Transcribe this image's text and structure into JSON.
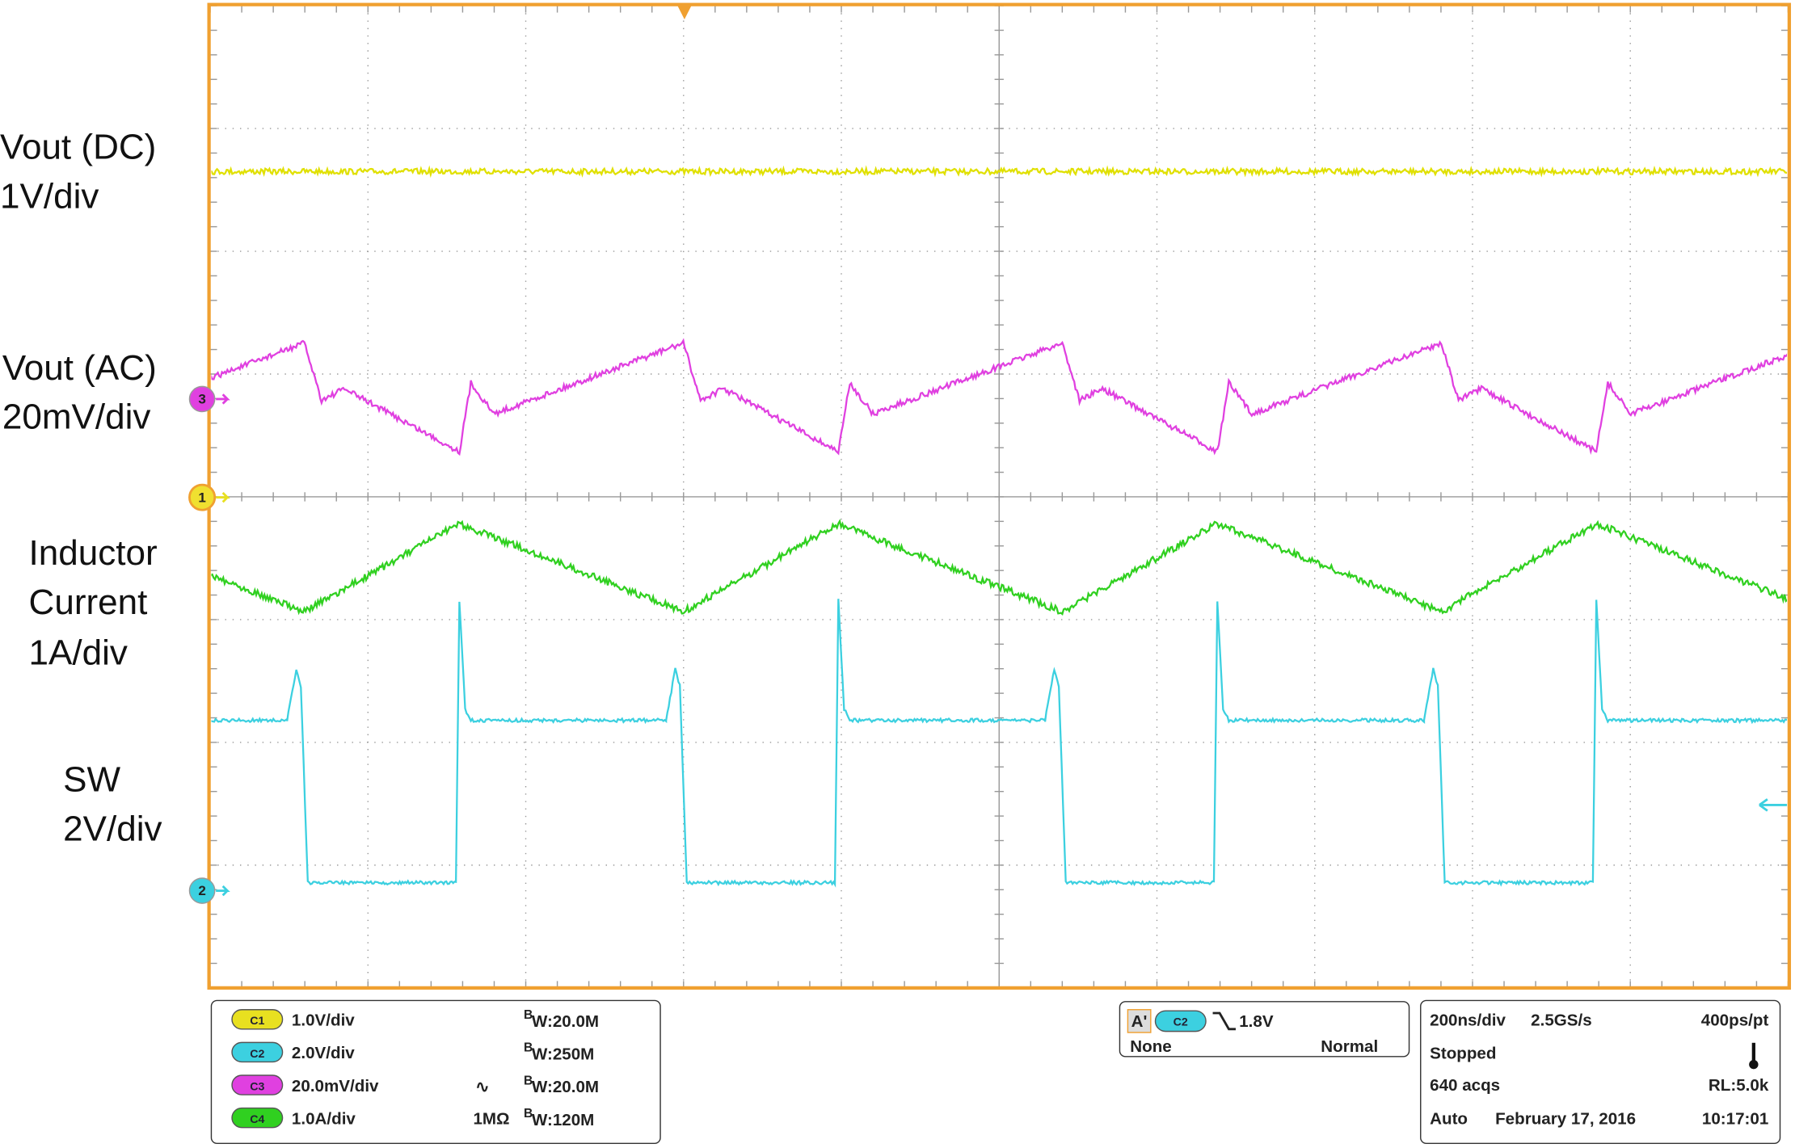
{
  "trace_labels": [
    {
      "name": "Vout (DC)",
      "scale": "1V/div"
    },
    {
      "name": "Vout (AC)",
      "scale": "20mV/div"
    },
    {
      "name": "Inductor",
      "name2": "Current",
      "scale": "1A/div"
    },
    {
      "name": "SW",
      "scale": "2V/div"
    }
  ],
  "markers": {
    "ch3": "3",
    "ch1": "1",
    "ch2": "2"
  },
  "bandwidth_prefix": "B",
  "channels": [
    {
      "badge": "C1",
      "scale": "1.0V/div",
      "bandwidth": "W:20.0M"
    },
    {
      "badge": "C2",
      "scale": "2.0V/div",
      "bandwidth": "W:250M"
    },
    {
      "badge": "C3",
      "scale": "20.0mV/div",
      "coupling": "∿",
      "bandwidth": "W:20.0M"
    },
    {
      "badge": "C4",
      "scale": "1.0A/div",
      "impedance": "1MΩ",
      "bandwidth": "W:120M"
    }
  ],
  "trigger": {
    "mode_badge": "A'",
    "source": "C2",
    "level": "1.8V",
    "holdoff": "None",
    "mode": "Normal"
  },
  "acquisition": {
    "timebase": "200ns/div",
    "sample_rate": "2.5GS/s",
    "resolution": "400ps/pt",
    "state": "Stopped",
    "count": "640 acqs",
    "record_length": "RL:5.0k",
    "trigger_mode": "Auto",
    "date": "February 17, 2016",
    "time": "10:17:01"
  }
}
